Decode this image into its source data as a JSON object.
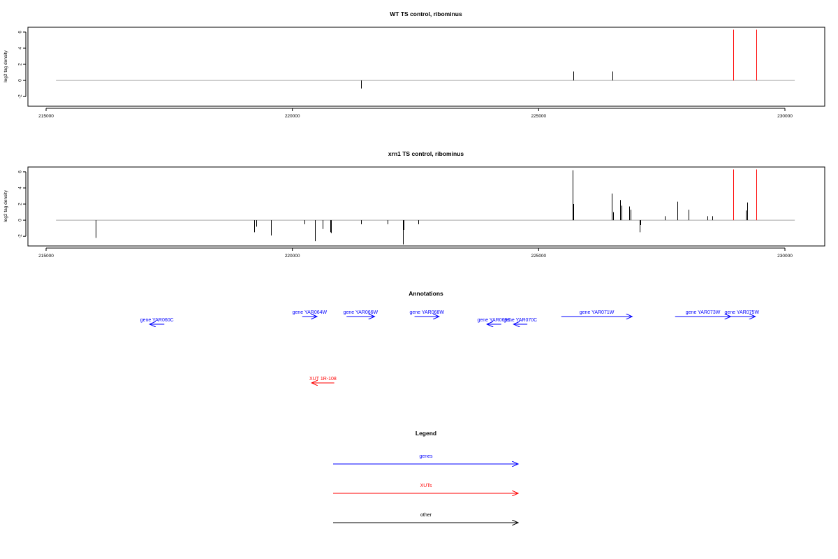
{
  "colors": {
    "other": "#000000",
    "genes": "#0000ff",
    "xuts": "#ff0000",
    "baseline": "#a9a9a9"
  },
  "chart_data": [
    {
      "type": "bar",
      "title": "WT TS control, ribominus",
      "ylabel": "log2 tag density",
      "xlim": [
        215000,
        230200
      ],
      "ylim": [
        -3.2,
        6.6
      ],
      "xticks": [
        "215000",
        "220000",
        "225000",
        "230000"
      ],
      "yticks": [
        "-2",
        "0",
        "2",
        "4",
        "6"
      ],
      "baseline": [
        215200,
        230200
      ],
      "series": [
        {
          "class": "other",
          "x": [
            221400,
            225700,
            226500
          ],
          "y": [
            -1.0,
            1.1,
            1.1
          ]
        },
        {
          "class": "xuts",
          "x": [
            228950,
            229420
          ],
          "y": [
            6.3,
            6.3
          ]
        }
      ]
    },
    {
      "type": "bar",
      "title": "xrn1 TS control, ribominus",
      "ylabel": "log2 tag density",
      "xlim": [
        215000,
        230200
      ],
      "ylim": [
        -3.2,
        6.6
      ],
      "xticks": [
        "215000",
        "220000",
        "225000",
        "230000"
      ],
      "yticks": [
        "-2",
        "0",
        "2",
        "4",
        "6"
      ],
      "baseline": [
        215200,
        230200
      ],
      "series": [
        {
          "class": "other",
          "x": [
            216000,
            219230,
            219270,
            219570,
            220240,
            220460,
            220610,
            220770,
            220790,
            221400,
            221930,
            222240,
            222260,
            222560,
            225690,
            225710,
            226490,
            226510,
            226660,
            226680,
            226840,
            226860,
            227050,
            227070,
            227560,
            227810,
            228040,
            228420,
            228520,
            229200,
            229230
          ],
          "y": [
            -2.2,
            -1.5,
            -0.8,
            -1.9,
            -0.5,
            -2.6,
            -1.1,
            -1.5,
            -1.6,
            -0.5,
            -0.5,
            -3.0,
            -1.2,
            -0.5,
            6.2,
            2.0,
            3.3,
            1.0,
            2.5,
            1.8,
            1.7,
            1.3,
            -1.5,
            -0.6,
            0.5,
            2.3,
            1.3,
            0.5,
            0.5,
            1.2,
            2.2
          ]
        },
        {
          "class": "xuts",
          "x": [
            228950,
            229420
          ],
          "y": [
            6.3,
            6.3
          ]
        }
      ]
    }
  ],
  "annotations": {
    "title": "Annotations",
    "genes": [
      {
        "label": "gene YAR060C",
        "x1": 217400,
        "x2": 217100,
        "row": 1
      },
      {
        "label": "gene YAR064W",
        "x1": 220200,
        "x2": 220500,
        "row": 0
      },
      {
        "label": "gene YAR066W",
        "x1": 221100,
        "x2": 221670,
        "row": 0
      },
      {
        "label": "gene YAR068W",
        "x1": 222480,
        "x2": 222980,
        "row": 0
      },
      {
        "label": "gene YAR069C",
        "x1": 224240,
        "x2": 223950,
        "row": 1
      },
      {
        "label": "gene YAR070C",
        "x1": 224770,
        "x2": 224490,
        "row": 1
      },
      {
        "label": "gene YAR071W",
        "x1": 225460,
        "x2": 226900,
        "row": 0
      },
      {
        "label": "gene YAR073W",
        "x1": 227770,
        "x2": 228900,
        "row": 0
      },
      {
        "label": "gene YAR075W",
        "x1": 228850,
        "x2": 229400,
        "row": 0
      }
    ],
    "xuts": [
      {
        "label": "XUT 1R-108",
        "x1": 220850,
        "x2": 220390
      }
    ]
  },
  "legend": {
    "title": "Legend",
    "items": [
      {
        "label": "genes",
        "class": "genes"
      },
      {
        "label": "XUTs",
        "class": "xuts"
      },
      {
        "label": "other",
        "class": "other"
      }
    ]
  }
}
